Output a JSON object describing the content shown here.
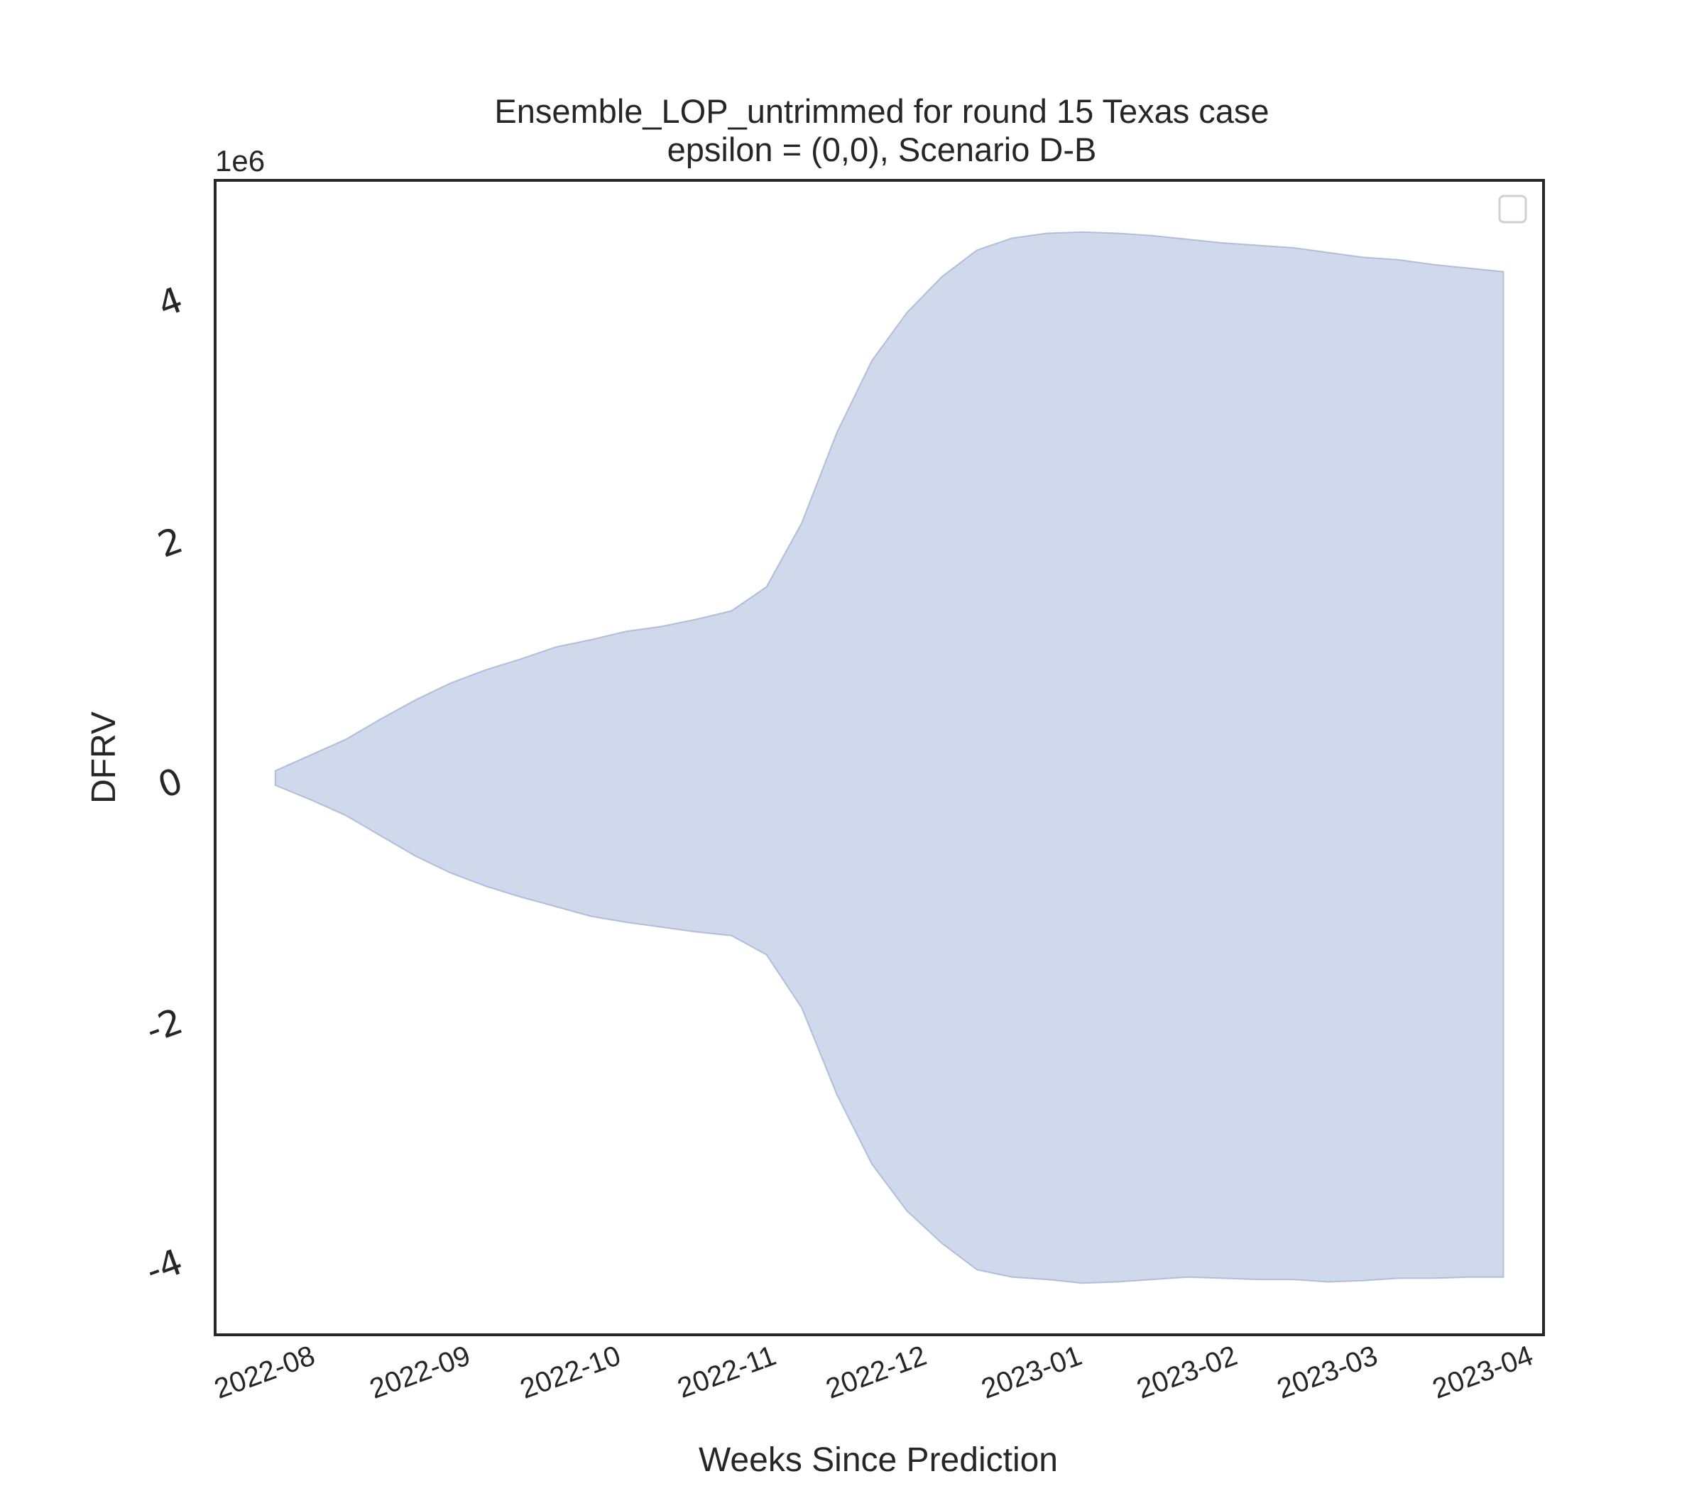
{
  "chart_data": {
    "type": "area",
    "title": "Ensemble_LOP_untrimmed for round 15 Texas case",
    "subtitle": "epsilon = (0,0), Scenario D-B",
    "xlabel": "Weeks Since Prediction",
    "ylabel": "DFRV",
    "y_offset_label": "1e6",
    "grid": false,
    "legend": "top-right (empty)",
    "colors": {
      "fill": "#b7c5e0",
      "edge": "#8ea2cc",
      "axes": "#262626"
    },
    "x_ticks": [
      "2022-08",
      "2022-09",
      "2022-10",
      "2022-11",
      "2022-12",
      "2023-01",
      "2023-02",
      "2023-03",
      "2023-04"
    ],
    "y_ticks": [
      -4,
      -2,
      0,
      2,
      4
    ],
    "y_tick_labels": [
      "-4",
      "-2",
      "0",
      "2",
      "4"
    ],
    "xlim": [
      "2022-07-13",
      "2023-04-04"
    ],
    "ylim": [
      -4.6,
      5.0
    ],
    "series": [
      {
        "x": [
          "2022-07-25",
          "2022-08-01",
          "2022-08-08",
          "2022-08-15",
          "2022-08-22",
          "2022-08-29",
          "2022-09-05",
          "2022-09-12",
          "2022-09-19",
          "2022-09-26",
          "2022-10-03",
          "2022-10-10",
          "2022-10-17",
          "2022-10-24",
          "2022-10-31",
          "2022-11-07",
          "2022-11-14",
          "2022-11-21",
          "2022-11-28",
          "2022-12-05",
          "2022-12-12",
          "2022-12-19",
          "2022-12-26",
          "2023-01-02",
          "2023-01-09",
          "2023-01-16",
          "2023-01-23",
          "2023-01-30",
          "2023-02-06",
          "2023-02-13",
          "2023-02-20",
          "2023-02-27",
          "2023-03-06",
          "2023-03-13",
          "2023-03-20",
          "2023-03-27"
        ],
        "upper": [
          0.09,
          0.22,
          0.35,
          0.52,
          0.68,
          0.82,
          0.93,
          1.02,
          1.12,
          1.18,
          1.25,
          1.29,
          1.35,
          1.42,
          1.62,
          2.15,
          2.9,
          3.5,
          3.9,
          4.2,
          4.42,
          4.52,
          4.56,
          4.57,
          4.56,
          4.54,
          4.51,
          4.48,
          4.46,
          4.44,
          4.4,
          4.36,
          4.34,
          4.3,
          4.27,
          4.24
        ],
        "lower": [
          -0.03,
          -0.15,
          -0.28,
          -0.45,
          -0.62,
          -0.76,
          -0.87,
          -0.96,
          -1.04,
          -1.12,
          -1.17,
          -1.21,
          -1.25,
          -1.28,
          -1.44,
          -1.88,
          -2.6,
          -3.18,
          -3.57,
          -3.84,
          -4.06,
          -4.12,
          -4.14,
          -4.17,
          -4.16,
          -4.14,
          -4.12,
          -4.13,
          -4.14,
          -4.14,
          -4.16,
          -4.15,
          -4.13,
          -4.13,
          -4.12,
          -4.12
        ]
      }
    ]
  }
}
